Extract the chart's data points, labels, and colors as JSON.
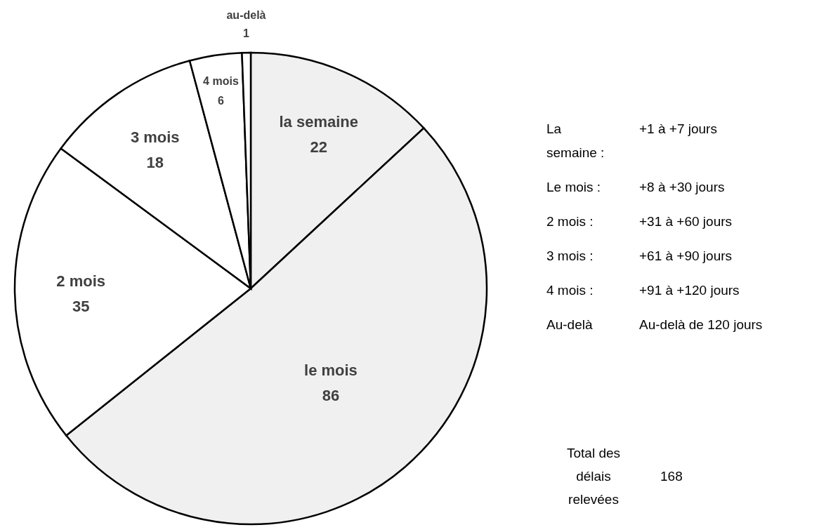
{
  "chart_data": {
    "type": "pie",
    "categories": [
      "la semaine",
      "le mois",
      "2 mois",
      "3 mois",
      "4 mois",
      "au-delà"
    ],
    "values": [
      22,
      86,
      35,
      18,
      6,
      1
    ],
    "colors": [
      "#f0f0f0",
      "#f0f0f0",
      "#ffffff",
      "#ffffff",
      "#ffffff",
      "#ffffff"
    ],
    "data_labels": true,
    "annotations": [
      "La semaine :",
      "+1 à +7 jours",
      "Le mois :",
      "+8 à +30 jours",
      "2 mois :",
      "+31 à +60 jours",
      "3 mois :",
      "+61 à +90 jours",
      "4 mois :",
      "+91 à +120 jours",
      "Au-delà",
      "Au-delà de 120 jours",
      "Total des délais relevées",
      "168"
    ]
  }
}
